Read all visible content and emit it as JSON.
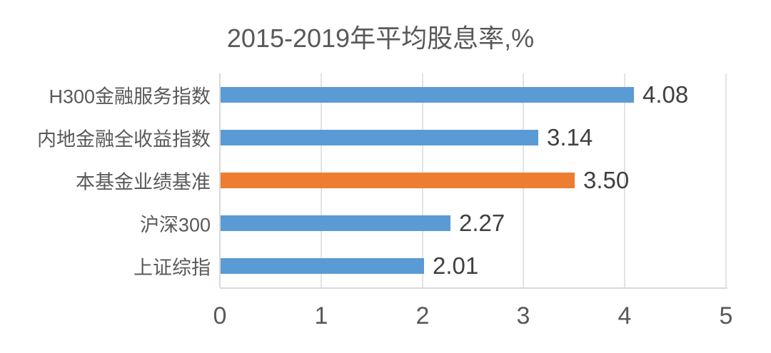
{
  "chart_data": {
    "type": "bar",
    "orientation": "horizontal",
    "title": "2015-2019年平均股息率,%",
    "categories": [
      "H300金融服务指数",
      "内地金融全收益指数",
      "本基金业绩基准",
      "沪深300",
      "上证综指"
    ],
    "values": [
      4.08,
      3.14,
      3.5,
      2.27,
      2.01
    ],
    "data_labels": [
      "4.08",
      "3.14",
      "3.50",
      "2.27",
      "2.01"
    ],
    "bar_colors": [
      "#5B9BD5",
      "#5B9BD5",
      "#ED7D31",
      "#5B9BD5",
      "#5B9BD5"
    ],
    "highlight_index": 2,
    "xlabel": "",
    "ylabel": "",
    "xlim": [
      0,
      5
    ],
    "x_ticks": [
      "0",
      "1",
      "2",
      "3",
      "4",
      "5"
    ],
    "grid": true,
    "legend": false,
    "colors": {
      "primary_bar": "#5B9BD5",
      "accent_bar": "#ED7D31",
      "gridline": "#E3E3E3",
      "axis_line": "#D9D9D9",
      "axis_text": "#595959",
      "value_text": "#404040",
      "title_text": "#595959",
      "background": "#FFFFFF"
    }
  }
}
